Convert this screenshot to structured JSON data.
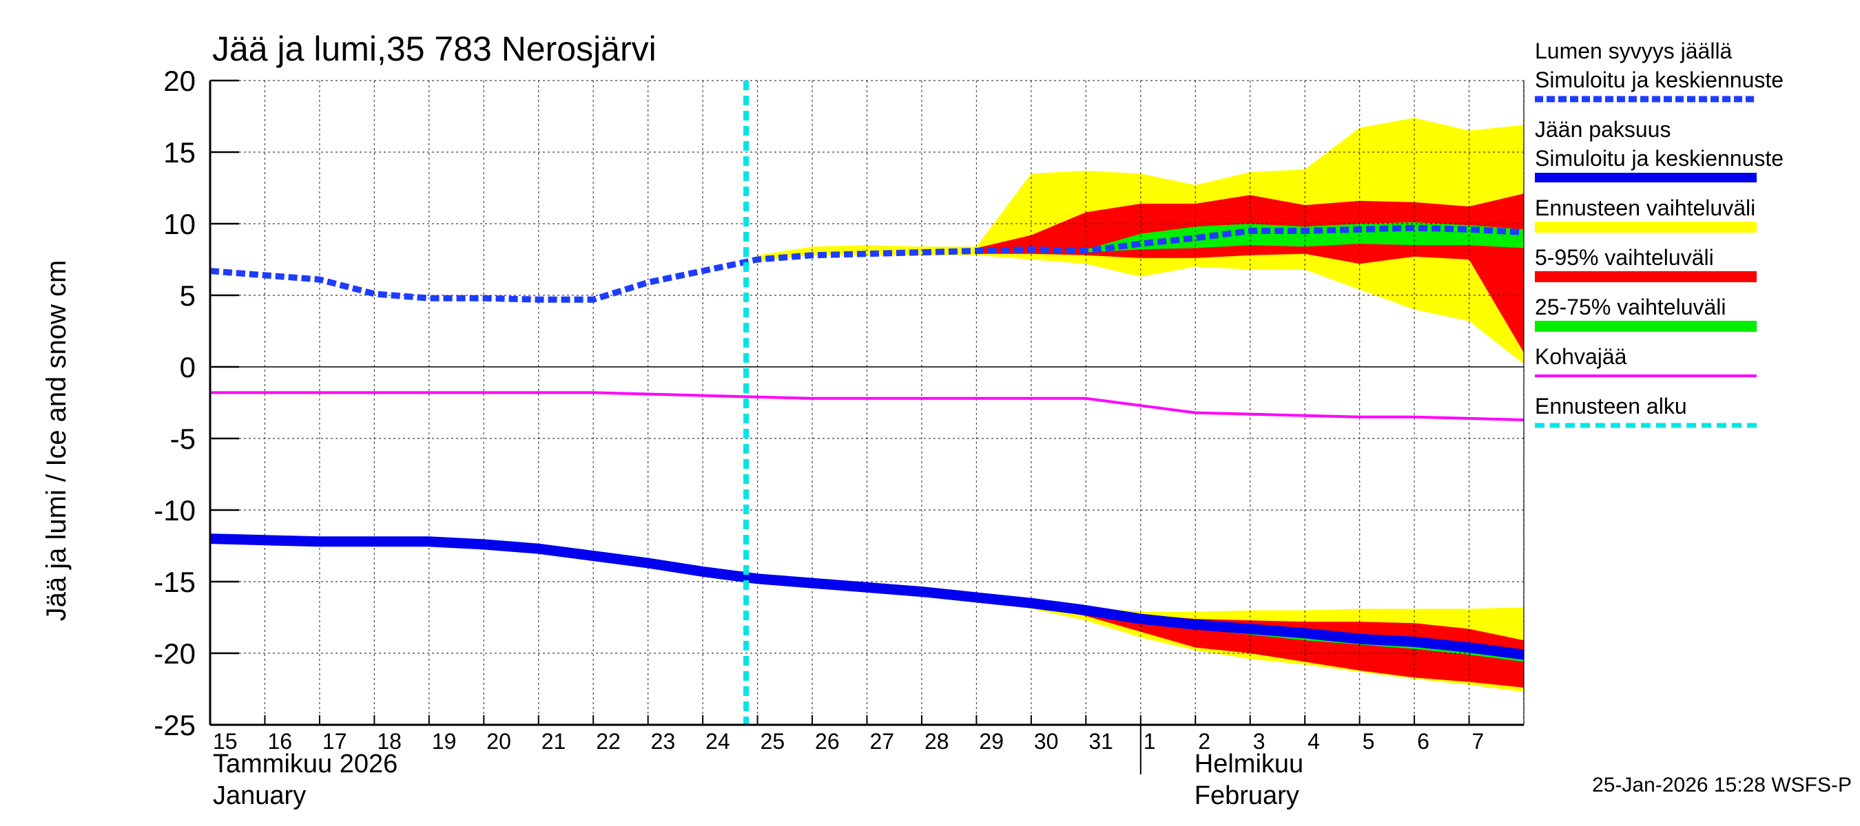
{
  "chart_data": {
    "type": "area",
    "title": "Jää ja lumi,35 783 Nerosjärvi",
    "ylabel": "Jää ja lumi / Ice and snow    cm",
    "xlabel": "",
    "ylim": [
      -25,
      20
    ],
    "yticks": [
      20,
      15,
      10,
      5,
      0,
      -5,
      -10,
      -15,
      -20,
      -25
    ],
    "grid": true,
    "legend_position": "right",
    "x_start": "2026-01-15",
    "x_end": "2026-02-08",
    "day_ticks": [
      {
        "date": "2026-01-15",
        "label": "15"
      },
      {
        "date": "2026-01-16",
        "label": "16"
      },
      {
        "date": "2026-01-17",
        "label": "17"
      },
      {
        "date": "2026-01-18",
        "label": "18"
      },
      {
        "date": "2026-01-19",
        "label": "19"
      },
      {
        "date": "2026-01-20",
        "label": "20"
      },
      {
        "date": "2026-01-21",
        "label": "21"
      },
      {
        "date": "2026-01-22",
        "label": "22"
      },
      {
        "date": "2026-01-23",
        "label": "23"
      },
      {
        "date": "2026-01-24",
        "label": "24"
      },
      {
        "date": "2026-01-25",
        "label": "25"
      },
      {
        "date": "2026-01-26",
        "label": "26"
      },
      {
        "date": "2026-01-27",
        "label": "27"
      },
      {
        "date": "2026-01-28",
        "label": "28"
      },
      {
        "date": "2026-01-29",
        "label": "29"
      },
      {
        "date": "2026-01-30",
        "label": "30"
      },
      {
        "date": "2026-01-31",
        "label": "31"
      },
      {
        "date": "2026-02-01",
        "label": "1"
      },
      {
        "date": "2026-02-02",
        "label": "2"
      },
      {
        "date": "2026-02-03",
        "label": "3"
      },
      {
        "date": "2026-02-04",
        "label": "4"
      },
      {
        "date": "2026-02-05",
        "label": "5"
      },
      {
        "date": "2026-02-06",
        "label": "6"
      },
      {
        "date": "2026-02-07",
        "label": "7"
      }
    ],
    "months": [
      {
        "date": "2026-01-15",
        "line1": "Tammikuu  2026",
        "line2": "January"
      },
      {
        "date": "2026-02-01",
        "line1": "Helmikuu",
        "line2": "February"
      }
    ],
    "forecast_start": "2026-01-24T19:00",
    "series": [
      {
        "key": "snow",
        "name": "Lumen syvyys jäällä",
        "color": "#1e3cff",
        "style": "dotted",
        "points": [
          [
            "2026-01-15",
            6.7
          ],
          [
            "2026-01-16",
            6.4
          ],
          [
            "2026-01-17",
            6.1
          ],
          [
            "2026-01-18",
            5.1
          ],
          [
            "2026-01-19",
            4.8
          ],
          [
            "2026-01-20",
            4.8
          ],
          [
            "2026-01-21",
            4.7
          ],
          [
            "2026-01-22",
            4.7
          ],
          [
            "2026-01-23",
            5.9
          ],
          [
            "2026-01-24",
            6.7
          ],
          [
            "2026-01-25",
            7.5
          ],
          [
            "2026-01-26",
            7.8
          ],
          [
            "2026-01-27",
            7.9
          ],
          [
            "2026-01-28",
            8.0
          ],
          [
            "2026-01-29",
            8.1
          ],
          [
            "2026-01-30",
            8.2
          ],
          [
            "2026-01-31",
            8.1
          ],
          [
            "2026-02-01",
            8.6
          ],
          [
            "2026-02-02",
            9.0
          ],
          [
            "2026-02-03",
            9.5
          ],
          [
            "2026-02-04",
            9.5
          ],
          [
            "2026-02-05",
            9.6
          ],
          [
            "2026-02-06",
            9.7
          ],
          [
            "2026-02-07",
            9.6
          ],
          [
            "2026-02-08",
            9.4
          ]
        ]
      },
      {
        "key": "ice",
        "name": "Jään paksuus",
        "color": "#0000ee",
        "style": "solid",
        "points": [
          [
            "2026-01-15",
            -12.0
          ],
          [
            "2026-01-16",
            -12.1
          ],
          [
            "2026-01-17",
            -12.2
          ],
          [
            "2026-01-18",
            -12.2
          ],
          [
            "2026-01-19",
            -12.2
          ],
          [
            "2026-01-20",
            -12.4
          ],
          [
            "2026-01-21",
            -12.7
          ],
          [
            "2026-01-22",
            -13.2
          ],
          [
            "2026-01-23",
            -13.7
          ],
          [
            "2026-01-24",
            -14.3
          ],
          [
            "2026-01-25",
            -14.8
          ],
          [
            "2026-01-26",
            -15.1
          ],
          [
            "2026-01-27",
            -15.4
          ],
          [
            "2026-01-28",
            -15.7
          ],
          [
            "2026-01-29",
            -16.1
          ],
          [
            "2026-01-30",
            -16.5
          ],
          [
            "2026-01-31",
            -17.0
          ],
          [
            "2026-02-01",
            -17.6
          ],
          [
            "2026-02-02",
            -18.0
          ],
          [
            "2026-02-03",
            -18.3
          ],
          [
            "2026-02-04",
            -18.6
          ],
          [
            "2026-02-05",
            -19.0
          ],
          [
            "2026-02-06",
            -19.2
          ],
          [
            "2026-02-07",
            -19.6
          ],
          [
            "2026-02-08",
            -20.1
          ]
        ]
      },
      {
        "key": "slush",
        "name": "Kohvajää",
        "color": "#ff00ff",
        "style": "solid",
        "points": [
          [
            "2026-01-15",
            -1.8
          ],
          [
            "2026-01-16",
            -1.8
          ],
          [
            "2026-01-17",
            -1.8
          ],
          [
            "2026-01-18",
            -1.8
          ],
          [
            "2026-01-19",
            -1.8
          ],
          [
            "2026-01-20",
            -1.8
          ],
          [
            "2026-01-21",
            -1.8
          ],
          [
            "2026-01-22",
            -1.8
          ],
          [
            "2026-01-23",
            -1.9
          ],
          [
            "2026-01-24",
            -2.0
          ],
          [
            "2026-01-25",
            -2.1
          ],
          [
            "2026-01-26",
            -2.2
          ],
          [
            "2026-01-27",
            -2.2
          ],
          [
            "2026-01-28",
            -2.2
          ],
          [
            "2026-01-29",
            -2.2
          ],
          [
            "2026-01-30",
            -2.2
          ],
          [
            "2026-01-31",
            -2.2
          ],
          [
            "2026-02-01",
            -2.7
          ],
          [
            "2026-02-02",
            -3.2
          ],
          [
            "2026-02-03",
            -3.3
          ],
          [
            "2026-02-04",
            -3.4
          ],
          [
            "2026-02-05",
            -3.5
          ],
          [
            "2026-02-06",
            -3.5
          ],
          [
            "2026-02-07",
            -3.6
          ],
          [
            "2026-02-08",
            -3.7
          ]
        ]
      }
    ],
    "bands": [
      {
        "key": "snow_full",
        "name": "Ennusteen vaihteluväli",
        "color": "#ffff00",
        "dates": [
          "2026-01-25",
          "2026-01-26",
          "2026-01-27",
          "2026-01-28",
          "2026-01-29",
          "2026-01-30",
          "2026-01-31",
          "2026-02-01",
          "2026-02-02",
          "2026-02-03",
          "2026-02-04",
          "2026-02-05",
          "2026-02-06",
          "2026-02-07",
          "2026-02-08"
        ],
        "upper": [
          7.8,
          8.4,
          8.5,
          8.4,
          8.4,
          13.5,
          13.7,
          13.5,
          12.7,
          13.6,
          13.8,
          16.7,
          17.4,
          16.5,
          16.9
        ],
        "lower": [
          7.4,
          7.8,
          7.8,
          7.8,
          7.8,
          7.5,
          7.2,
          6.3,
          7.0,
          6.8,
          6.8,
          5.4,
          4.0,
          3.2,
          0.2
        ]
      },
      {
        "key": "snow_90",
        "name": "5-95% vaihteluväli",
        "color": "#ff0000",
        "dates": [
          "2026-01-29",
          "2026-01-30",
          "2026-01-31",
          "2026-02-01",
          "2026-02-02",
          "2026-02-03",
          "2026-02-04",
          "2026-02-05",
          "2026-02-06",
          "2026-02-07",
          "2026-02-08"
        ],
        "upper": [
          8.3,
          9.2,
          10.8,
          11.4,
          11.4,
          12.0,
          11.3,
          11.6,
          11.5,
          11.2,
          12.1
        ],
        "lower": [
          7.9,
          7.9,
          7.8,
          7.6,
          7.6,
          7.8,
          7.9,
          7.2,
          7.7,
          7.5,
          1.0
        ]
      },
      {
        "key": "snow_50",
        "name": "25-75% vaihteluväli",
        "color": "#00ee00",
        "dates": [
          "2026-01-31",
          "2026-02-01",
          "2026-02-02",
          "2026-02-03",
          "2026-02-04",
          "2026-02-05",
          "2026-02-06",
          "2026-02-07",
          "2026-02-08"
        ],
        "upper": [
          8.2,
          9.3,
          9.8,
          10.0,
          9.8,
          10.0,
          10.1,
          9.9,
          9.6
        ],
        "lower": [
          8.0,
          8.2,
          8.3,
          8.5,
          8.4,
          8.6,
          8.5,
          8.5,
          8.3
        ]
      },
      {
        "key": "ice_full",
        "name": "Ennusteen vaihteluväli",
        "color": "#ffff00",
        "dates": [
          "2026-01-25",
          "2026-01-26",
          "2026-01-27",
          "2026-01-28",
          "2026-01-29",
          "2026-01-30",
          "2026-01-31",
          "2026-02-01",
          "2026-02-02",
          "2026-02-03",
          "2026-02-04",
          "2026-02-05",
          "2026-02-06",
          "2026-02-07",
          "2026-02-08"
        ],
        "upper": [
          -14.7,
          -15.0,
          -15.3,
          -15.6,
          -16.0,
          -16.4,
          -16.8,
          -17.1,
          -17.1,
          -17.0,
          -17.0,
          -16.9,
          -16.9,
          -16.9,
          -16.8
        ],
        "lower": [
          -14.9,
          -15.2,
          -15.5,
          -15.9,
          -16.3,
          -16.9,
          -17.7,
          -18.9,
          -19.8,
          -20.4,
          -20.8,
          -21.3,
          -21.8,
          -22.2,
          -22.7
        ]
      },
      {
        "key": "ice_90",
        "name": "5-95% vaihteluväli",
        "color": "#ff0000",
        "dates": [
          "2026-01-30",
          "2026-01-31",
          "2026-02-01",
          "2026-02-02",
          "2026-02-03",
          "2026-02-04",
          "2026-02-05",
          "2026-02-06",
          "2026-02-07",
          "2026-02-08"
        ],
        "upper": [
          -16.4,
          -16.9,
          -17.3,
          -17.6,
          -17.7,
          -17.8,
          -17.8,
          -17.9,
          -18.3,
          -19.1
        ],
        "lower": [
          -16.7,
          -17.4,
          -18.5,
          -19.6,
          -20.0,
          -20.6,
          -21.2,
          -21.7,
          -22.0,
          -22.4
        ]
      },
      {
        "key": "ice_50",
        "name": "25-75% vaihteluväli",
        "color": "#00ee00",
        "dates": [
          "2026-01-31",
          "2026-02-01",
          "2026-02-02",
          "2026-02-03",
          "2026-02-04",
          "2026-02-05",
          "2026-02-06",
          "2026-02-07",
          "2026-02-08"
        ],
        "upper": [
          -16.9,
          -17.5,
          -17.9,
          -18.2,
          -18.5,
          -18.8,
          -19.0,
          -19.4,
          -19.8
        ],
        "lower": [
          -17.1,
          -17.8,
          -18.3,
          -18.7,
          -19.1,
          -19.4,
          -19.7,
          -20.1,
          -20.6
        ]
      }
    ],
    "legend": [
      {
        "key": "snow",
        "lines": [
          "Lumen syvyys jäällä",
          "Simuloitu ja keskiennuste"
        ],
        "color": "#1e3cff",
        "style": "dotted"
      },
      {
        "key": "ice",
        "lines": [
          "Jään paksuus",
          "Simuloitu ja keskiennuste"
        ],
        "color": "#0000ee",
        "style": "thick"
      },
      {
        "key": "full",
        "lines": [
          "Ennusteen vaihteluväli"
        ],
        "color": "#ffff00",
        "style": "band"
      },
      {
        "key": "p90",
        "lines": [
          "5-95% vaihteluväli"
        ],
        "color": "#ff0000",
        "style": "band"
      },
      {
        "key": "p50",
        "lines": [
          "25-75% vaihteluväli"
        ],
        "color": "#00ee00",
        "style": "band"
      },
      {
        "key": "slush",
        "lines": [
          "Kohvajää"
        ],
        "color": "#ff00ff",
        "style": "thin"
      },
      {
        "key": "fstart",
        "lines": [
          "Ennusteen alku"
        ],
        "color": "#00e5e5",
        "style": "dashed"
      }
    ],
    "footer": "25-Jan-2026 15:28 WSFS-P"
  }
}
